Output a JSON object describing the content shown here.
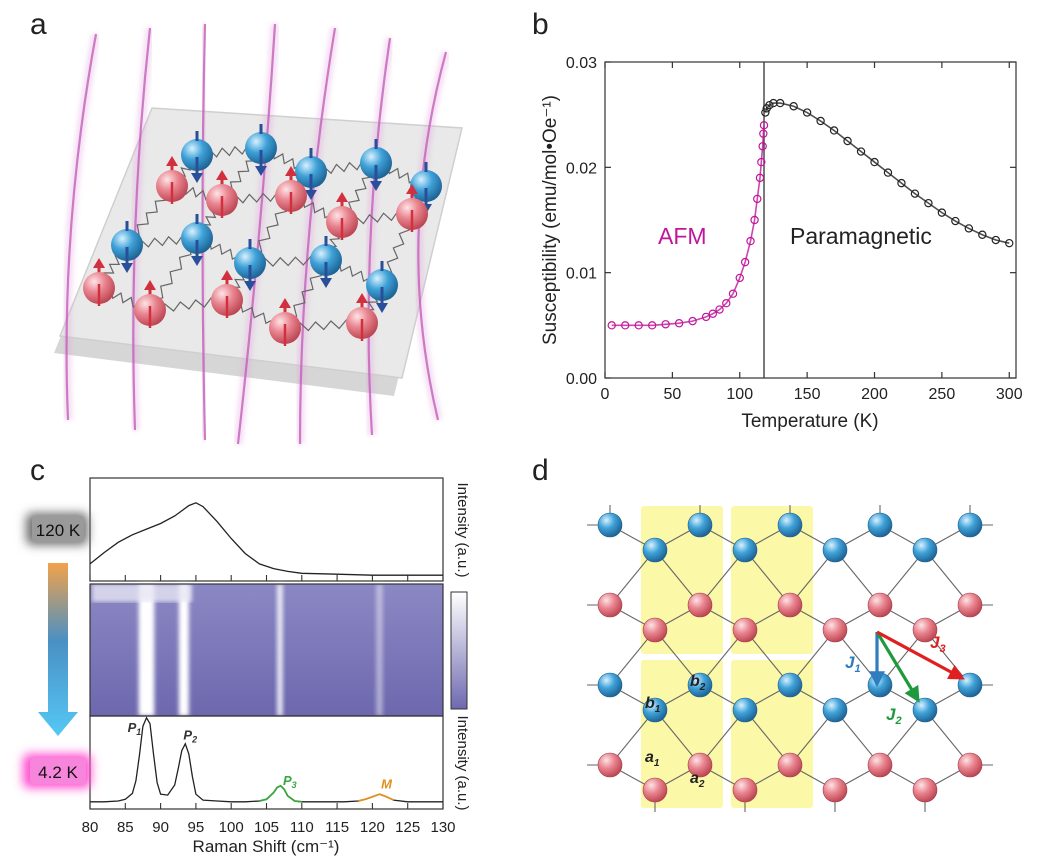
{
  "panels": {
    "a": {
      "label": "a"
    },
    "b": {
      "label": "b"
    },
    "c": {
      "label": "c"
    },
    "d": {
      "label": "d"
    }
  },
  "colors": {
    "afm": "#c0169a",
    "para": "#222222",
    "spin_up": "#e0707a",
    "spin_down": "#2f8fc4",
    "field_line": "#e6a0e0",
    "unit_cell": "#fbf8a8",
    "p3": "#3aa640",
    "m": "#e0901e",
    "j1": "#2d7dbf",
    "j2": "#1e9a3c",
    "j3": "#e02020",
    "heat_low": "#7a76b8",
    "heat_high": "#ffffff",
    "badge_hot": "#888888",
    "badge_cold": "#f25fd0"
  },
  "chart_data": [
    {
      "panel": "b",
      "type": "scatter",
      "xlabel": "Temperature (K)",
      "ylabel": "Susceptibility (emu/mol•Oe⁻¹)",
      "xlim": [
        0,
        305
      ],
      "ylim": [
        0,
        0.03
      ],
      "xticks": [
        "0",
        "50",
        "100",
        "150",
        "200",
        "250",
        "300"
      ],
      "xtick_values": [
        0,
        50,
        100,
        150,
        200,
        250,
        300
      ],
      "yticks": [
        "0.00",
        "0.01",
        "0.02",
        "0.03"
      ],
      "ytick_values": [
        0,
        0.01,
        0.02,
        0.03
      ],
      "transition_T": 118,
      "annotations": [
        "AFM",
        "Paramagnetic"
      ],
      "series": [
        {
          "region": "AFM",
          "x": [
            5,
            15,
            25,
            35,
            45,
            55,
            65,
            75,
            80,
            85,
            90,
            95,
            100,
            104,
            108,
            111,
            113,
            115,
            116,
            117,
            117.5,
            118
          ],
          "y": [
            0.005,
            0.005,
            0.005,
            0.005,
            0.0051,
            0.0052,
            0.0054,
            0.0058,
            0.0061,
            0.0065,
            0.0071,
            0.008,
            0.0095,
            0.011,
            0.013,
            0.015,
            0.017,
            0.019,
            0.0205,
            0.022,
            0.0232,
            0.024
          ]
        },
        {
          "region": "Paramagnetic",
          "x": [
            119,
            120,
            122,
            125,
            130,
            140,
            150,
            160,
            170,
            180,
            190,
            200,
            210,
            220,
            230,
            240,
            250,
            260,
            270,
            280,
            290,
            300
          ],
          "y": [
            0.0252,
            0.0256,
            0.0259,
            0.0261,
            0.0261,
            0.0258,
            0.0252,
            0.0244,
            0.0235,
            0.0225,
            0.0215,
            0.0205,
            0.0195,
            0.0185,
            0.0175,
            0.0166,
            0.0157,
            0.0149,
            0.0142,
            0.0136,
            0.0131,
            0.0128
          ]
        }
      ]
    },
    {
      "panel": "c",
      "type": "line",
      "xlabel": "Raman Shift (cm⁻¹)",
      "ylabel_top": "Intensity (a.u.)",
      "ylabel_bottom": "Intensity (a.u.)",
      "xlim": [
        80,
        130
      ],
      "xticks": [
        "80",
        "85",
        "90",
        "95",
        "100",
        "105",
        "110",
        "115",
        "120",
        "125",
        "130"
      ],
      "xtick_values": [
        80,
        85,
        90,
        95,
        100,
        105,
        110,
        115,
        120,
        125,
        130
      ],
      "temp_high": "120 K",
      "temp_low": "4.2 K",
      "peak_labels": [
        {
          "text": "P1",
          "x": 86.3,
          "y": 0.88
        },
        {
          "text": "P2",
          "x": 94.2,
          "y": 0.79
        },
        {
          "text": "P3",
          "x": 108.3,
          "y": 0.25
        },
        {
          "text": "M",
          "x": 122.0,
          "y": 0.21
        }
      ],
      "top_spectrum": {
        "x": [
          80,
          82,
          84,
          86,
          88,
          90,
          92,
          94,
          95,
          96,
          98,
          100,
          102,
          104,
          106,
          108,
          110,
          115,
          120,
          125,
          130
        ],
        "y": [
          0.15,
          0.27,
          0.38,
          0.46,
          0.52,
          0.58,
          0.66,
          0.77,
          0.8,
          0.76,
          0.6,
          0.42,
          0.26,
          0.15,
          0.1,
          0.07,
          0.05,
          0.04,
          0.03,
          0.03,
          0.03
        ]
      },
      "bottom_spectrum": {
        "x": [
          80,
          82,
          84,
          85,
          86,
          86.5,
          87,
          87.5,
          88,
          88.5,
          89,
          89.5,
          90,
          91,
          92,
          92.5,
          93,
          93.5,
          94,
          94.5,
          95,
          96,
          98,
          100,
          102,
          104,
          105,
          106,
          106.5,
          107,
          107.5,
          108,
          109,
          110,
          112,
          114,
          116,
          118,
          119,
          120,
          121,
          122,
          123,
          125,
          128,
          130
        ],
        "y": [
          0.05,
          0.05,
          0.06,
          0.08,
          0.15,
          0.3,
          0.6,
          0.95,
          1.05,
          0.98,
          0.62,
          0.28,
          0.14,
          0.13,
          0.25,
          0.45,
          0.66,
          0.74,
          0.62,
          0.35,
          0.14,
          0.07,
          0.06,
          0.05,
          0.05,
          0.06,
          0.08,
          0.16,
          0.22,
          0.24,
          0.2,
          0.12,
          0.06,
          0.05,
          0.05,
          0.05,
          0.05,
          0.06,
          0.08,
          0.11,
          0.14,
          0.11,
          0.07,
          0.05,
          0.05,
          0.05
        ]
      },
      "heatmap_lines": [
        {
          "x": 88.0,
          "width": 2.2,
          "strength": 1.0
        },
        {
          "x": 93.3,
          "width": 1.4,
          "strength": 1.0
        },
        {
          "x": 106.9,
          "width": 0.8,
          "strength": 0.85
        },
        {
          "x": 121.0,
          "width": 0.9,
          "strength": 0.45
        }
      ]
    }
  ],
  "lattice": {
    "site_labels": [
      "a1",
      "a2",
      "b1",
      "b2"
    ],
    "site_label_text": {
      "a": "a",
      "b": "b",
      "sub1": "1",
      "sub2": "2"
    },
    "exchange": [
      "J1",
      "J2",
      "J3"
    ],
    "exchange_text": {
      "J": "J",
      "sub1": "1",
      "sub2": "2",
      "sub3": "3"
    }
  }
}
